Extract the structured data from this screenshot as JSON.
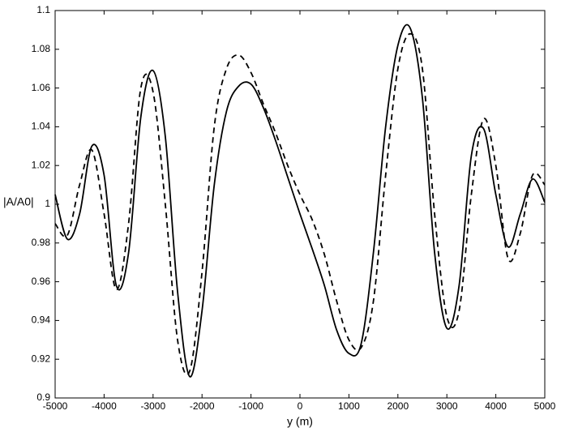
{
  "chart_data": {
    "type": "line",
    "xlabel": "y (m)",
    "ylabel": "|A/A0|",
    "x": [
      -5000,
      -4750,
      -4500,
      -4250,
      -4000,
      -3750,
      -3500,
      -3250,
      -3000,
      -2750,
      -2500,
      -2250,
      -2000,
      -1750,
      -1500,
      -1250,
      -1000,
      -750,
      -500,
      -250,
      0,
      250,
      500,
      750,
      1000,
      1250,
      1500,
      1750,
      2000,
      2250,
      2500,
      2750,
      3000,
      3250,
      3500,
      3750,
      4000,
      4250,
      4500,
      4750,
      5000
    ],
    "series": [
      {
        "color": "#000000",
        "dash": "solid",
        "values": [
          1.005,
          0.982,
          0.995,
          1.03,
          1.015,
          0.958,
          0.975,
          1.045,
          1.069,
          1.035,
          0.955,
          0.911,
          0.945,
          1.01,
          1.048,
          1.061,
          1.062,
          1.05,
          1.033,
          1.014,
          0.995,
          0.977,
          0.958,
          0.935,
          0.923,
          0.928,
          0.975,
          1.04,
          1.082,
          1.091,
          1.055,
          0.975,
          0.936,
          0.958,
          1.025,
          1.039,
          1.005,
          0.978,
          0.995,
          1.013,
          1.001
        ]
      },
      {
        "color": "#000000",
        "dash": "dashed",
        "values": [
          0.99,
          0.984,
          1.01,
          1.028,
          0.995,
          0.956,
          0.99,
          1.06,
          1.058,
          1.0,
          0.93,
          0.914,
          0.965,
          1.04,
          1.07,
          1.077,
          1.068,
          1.052,
          1.037,
          1.02,
          1.005,
          0.992,
          0.974,
          0.95,
          0.93,
          0.926,
          0.95,
          1.015,
          1.07,
          1.088,
          1.07,
          0.995,
          0.942,
          0.945,
          1.005,
          1.044,
          1.02,
          0.972,
          0.985,
          1.015,
          1.01
        ]
      }
    ],
    "xlim": [
      -5000,
      5000
    ],
    "xticks": [
      -5000,
      -4000,
      -3000,
      -2000,
      -1000,
      0,
      1000,
      2000,
      3000,
      4000,
      5000
    ],
    "ylim": [
      0.9,
      1.1
    ],
    "yticks": [
      0.9,
      0.92,
      0.94,
      0.96,
      0.98,
      1,
      1.02,
      1.04,
      1.06,
      1.08,
      1.1
    ],
    "grid": false
  }
}
